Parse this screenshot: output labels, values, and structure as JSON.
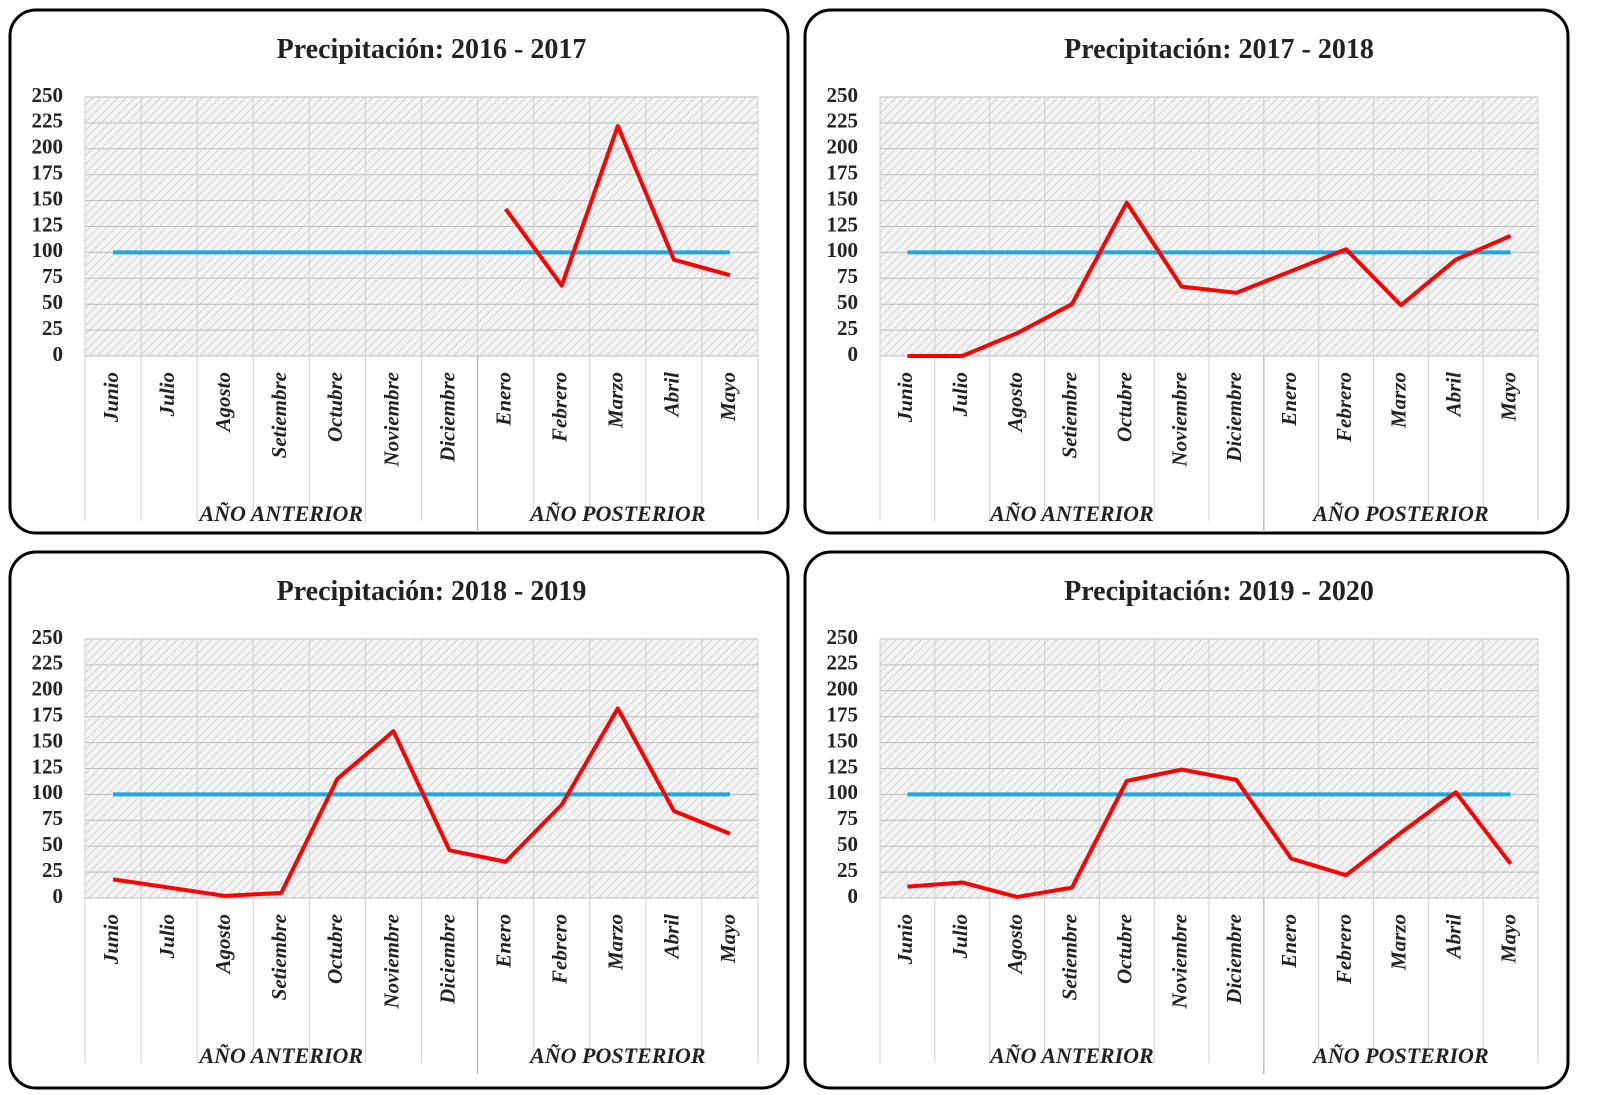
{
  "chart_data": [
    {
      "type": "line",
      "title": "Precipitación: 2016 - 2017",
      "groups": [
        {
          "label": "AÑO ANTERIOR",
          "categories": [
            "Junio",
            "Julio",
            "Agosto",
            "Setiembre",
            "Octubre",
            "Noviembre",
            "Diciembre"
          ]
        },
        {
          "label": "AÑO POSTERIOR",
          "categories": [
            "Enero",
            "Febrero",
            "Marzo",
            "Abril",
            "Mayo"
          ]
        }
      ],
      "series": [
        {
          "color": "#ff0000",
          "values": [
            null,
            null,
            null,
            null,
            null,
            null,
            null,
            142,
            68,
            222,
            93,
            78
          ]
        },
        {
          "color": "#1ea7e1",
          "values": [
            100,
            100,
            100,
            100,
            100,
            100,
            100,
            100,
            100,
            100,
            100,
            100
          ]
        }
      ],
      "ylim": [
        0,
        250
      ],
      "yticks": [
        0,
        25,
        50,
        75,
        100,
        125,
        150,
        175,
        200,
        225,
        250
      ],
      "grid": true
    },
    {
      "type": "line",
      "title": "Precipitación: 2017 - 2018",
      "groups": [
        {
          "label": "AÑO ANTERIOR",
          "categories": [
            "Junio",
            "Julio",
            "Agosto",
            "Setiembre",
            "Octubre",
            "Noviembre",
            "Diciembre"
          ]
        },
        {
          "label": "AÑO POSTERIOR",
          "categories": [
            "Enero",
            "Febrero",
            "Marzo",
            "Abril",
            "Mayo"
          ]
        }
      ],
      "series": [
        {
          "color": "#ff0000",
          "values": [
            0,
            0,
            22,
            50,
            148,
            67,
            61,
            82,
            103,
            49,
            93,
            116
          ]
        },
        {
          "color": "#1ea7e1",
          "values": [
            100,
            100,
            100,
            100,
            100,
            100,
            100,
            100,
            100,
            100,
            100,
            100
          ]
        }
      ],
      "ylim": [
        0,
        250
      ],
      "yticks": [
        0,
        25,
        50,
        75,
        100,
        125,
        150,
        175,
        200,
        225,
        250
      ],
      "grid": true
    },
    {
      "type": "line",
      "title": "Precipitación: 2018 - 2019",
      "groups": [
        {
          "label": "AÑO ANTERIOR",
          "categories": [
            "Junio",
            "Julio",
            "Agosto",
            "Setiembre",
            "Octubre",
            "Noviembre",
            "Diciembre"
          ]
        },
        {
          "label": "AÑO POSTERIOR",
          "categories": [
            "Enero",
            "Febrero",
            "Marzo",
            "Abril",
            "Mayo"
          ]
        }
      ],
      "series": [
        {
          "color": "#ff0000",
          "values": [
            18,
            10,
            2,
            5,
            115,
            161,
            46,
            35,
            90,
            183,
            84,
            62
          ]
        },
        {
          "color": "#1ea7e1",
          "values": [
            100,
            100,
            100,
            100,
            100,
            100,
            100,
            100,
            100,
            100,
            100,
            100
          ]
        }
      ],
      "ylim": [
        0,
        250
      ],
      "yticks": [
        0,
        25,
        50,
        75,
        100,
        125,
        150,
        175,
        200,
        225,
        250
      ],
      "grid": true
    },
    {
      "type": "line",
      "title": "Precipitación: 2019 - 2020",
      "groups": [
        {
          "label": "AÑO ANTERIOR",
          "categories": [
            "Junio",
            "Julio",
            "Agosto",
            "Setiembre",
            "Octubre",
            "Noviembre",
            "Diciembre"
          ]
        },
        {
          "label": "AÑO POSTERIOR",
          "categories": [
            "Enero",
            "Febrero",
            "Marzo",
            "Abril",
            "Mayo"
          ]
        }
      ],
      "series": [
        {
          "color": "#ff0000",
          "values": [
            11,
            15,
            1,
            10,
            113,
            124,
            114,
            38,
            22,
            63,
            102,
            33
          ]
        },
        {
          "color": "#1ea7e1",
          "values": [
            100,
            100,
            100,
            100,
            100,
            100,
            100,
            100,
            100,
            100,
            100,
            100
          ]
        }
      ],
      "ylim": [
        0,
        250
      ],
      "yticks": [
        0,
        25,
        50,
        75,
        100,
        125,
        150,
        175,
        200,
        225,
        250
      ],
      "grid": true
    }
  ]
}
